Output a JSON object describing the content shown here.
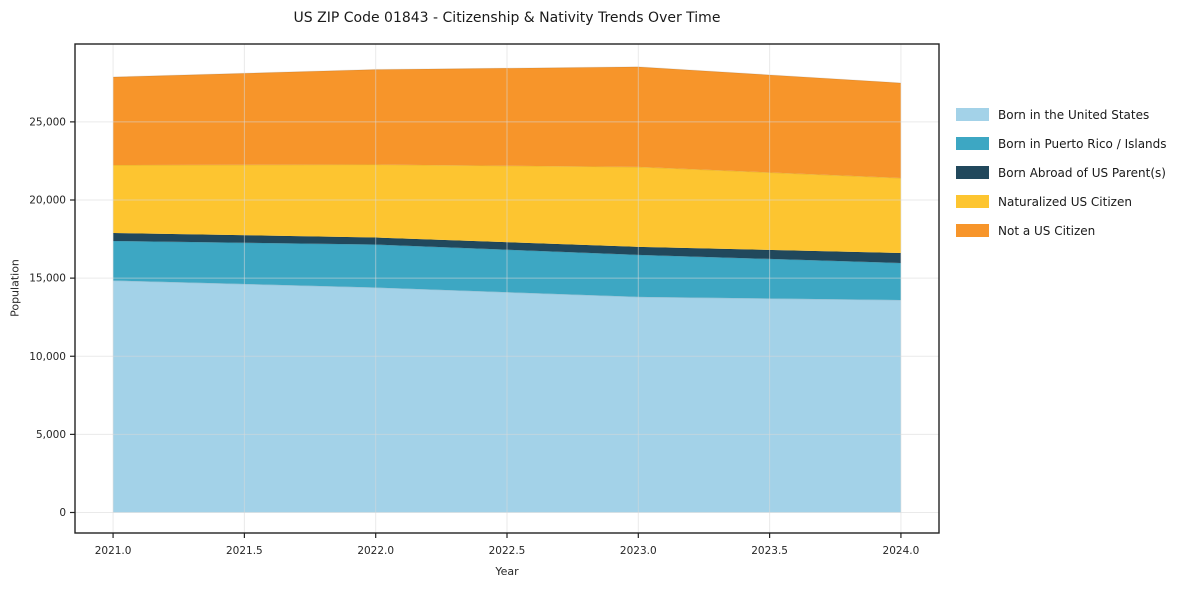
{
  "title": "US ZIP Code 01843 - Citizenship & Nativity Trends Over Time",
  "chart_data": {
    "type": "area",
    "stacked": true,
    "title": "US ZIP Code 01843 - Citizenship & Nativity Trends Over Time",
    "xlabel": "Year",
    "ylabel": "Population",
    "x": [
      2021,
      2022,
      2023,
      2024
    ],
    "series": [
      {
        "name": "Born in the United States",
        "color": "#a3d2e8",
        "values": [
          14850,
          14400,
          13800,
          13600
        ]
      },
      {
        "name": "Born in Puerto Rico / Islands",
        "color": "#3da7c3",
        "values": [
          2530,
          2750,
          2690,
          2370
        ]
      },
      {
        "name": "Born Abroad of US Parent(s)",
        "color": "#21485c",
        "values": [
          510,
          450,
          510,
          640
        ]
      },
      {
        "name": "Naturalized US Citizen",
        "color": "#fdc530",
        "values": [
          4350,
          4670,
          5120,
          4800
        ]
      },
      {
        "name": "Not a US Citizen",
        "color": "#f7952a",
        "values": [
          5630,
          6080,
          6400,
          6080
        ]
      }
    ],
    "xlim": [
      2020.855,
      2024.145
    ],
    "ylim": [
      -1312,
      29984
    ],
    "x_ticks": [
      {
        "v": 2021.0,
        "label": "2021.0"
      },
      {
        "v": 2021.5,
        "label": "2021.5"
      },
      {
        "v": 2022.0,
        "label": "2022.0"
      },
      {
        "v": 2022.5,
        "label": "2022.5"
      },
      {
        "v": 2023.0,
        "label": "2023.0"
      },
      {
        "v": 2023.5,
        "label": "2023.5"
      },
      {
        "v": 2024.0,
        "label": "2024.0"
      }
    ],
    "y_ticks": [
      {
        "v": 0,
        "label": "0"
      },
      {
        "v": 5000,
        "label": "5,000"
      },
      {
        "v": 10000,
        "label": "10,000"
      },
      {
        "v": 15000,
        "label": "15,000"
      },
      {
        "v": 20000,
        "label": "20,000"
      },
      {
        "v": 25000,
        "label": "25,000"
      }
    ],
    "grid": true,
    "grid_color": "#d8d8d8",
    "legend_position": "right-outside",
    "background": "#ffffff"
  }
}
